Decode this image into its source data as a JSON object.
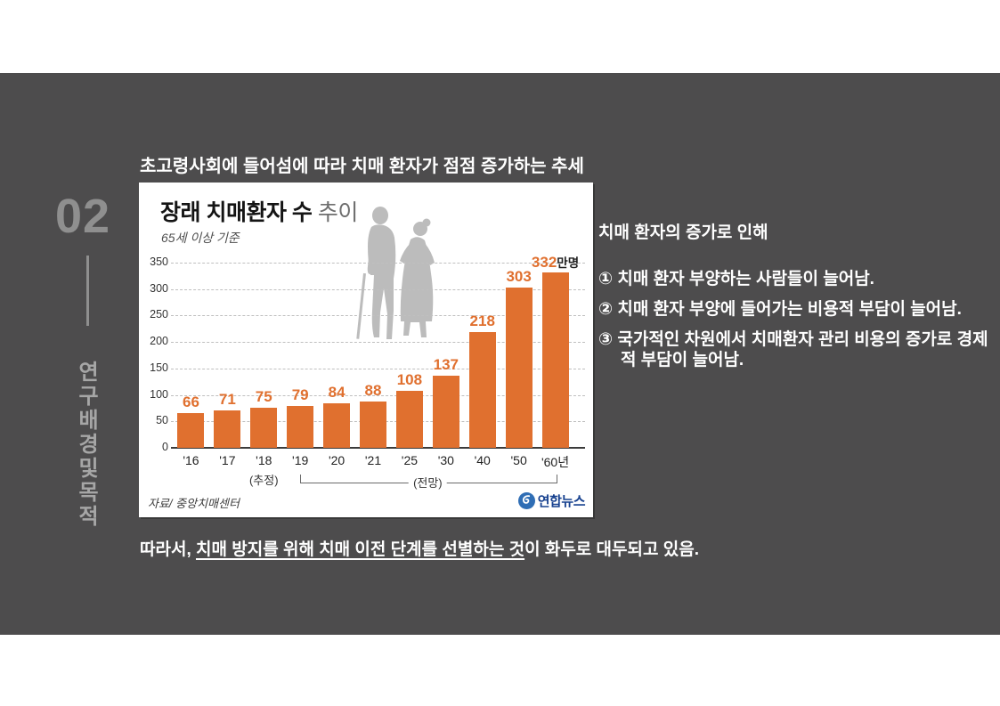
{
  "slide": {
    "section_number": "02",
    "section_title_vertical": "연구배경및목적",
    "heading": "초고령사회에 들어섬에 따라 치매 환자가 점점 증가하는 추세",
    "right_panel": {
      "intro": "치매 환자의 증가로 인해",
      "points": [
        "① 치매 환자 부양하는 사람들이 늘어남.",
        "② 치매 환자 부양에 들어가는  비용적 부담이 늘어남.",
        "③ 국가적인 차원에서 치매환자 관리 비용의 증가로 경제적 부담이 늘어남."
      ]
    },
    "conclusion": {
      "prefix": "따라서, ",
      "underlined": "치매 방지를 위해 치매 이전 단계를 선별하는 것",
      "suffix": "이 화두로 대두되고 있음."
    }
  },
  "chart": {
    "title_bold": "장래 치매환자 수",
    "title_light": " 추이",
    "subtitle": "65세 이상 기준",
    "source": "자료/ 중앙치매센터",
    "brand": "연합뉴스"
  },
  "chart_data": {
    "type": "bar",
    "title": "장래 치매환자 수 추이",
    "subtitle": "65세 이상 기준",
    "categories": [
      "'16",
      "'17",
      "'18",
      "'19",
      "'20",
      "'21",
      "'25",
      "'30",
      "'40",
      "'50",
      "'60년"
    ],
    "values": [
      66,
      71,
      75,
      79,
      84,
      88,
      108,
      137,
      218,
      303,
      332
    ],
    "unit_suffix_last": "만명",
    "ylim": [
      0,
      350
    ],
    "yticks": [
      0,
      50,
      100,
      150,
      200,
      250,
      300,
      350
    ],
    "grid": "dashed-horizontal",
    "legend": "none",
    "bar_color": "#e0702f",
    "annotations": {
      "estimate_label": "(추정)",
      "estimate_index": 2,
      "forecast_label": "(전망)",
      "forecast_from_index": 3,
      "forecast_to_index": 10
    }
  },
  "colors": {
    "slide_bg": "#4d4c4d",
    "accent_orange": "#e0702f",
    "brand_blue": "#17418f"
  }
}
